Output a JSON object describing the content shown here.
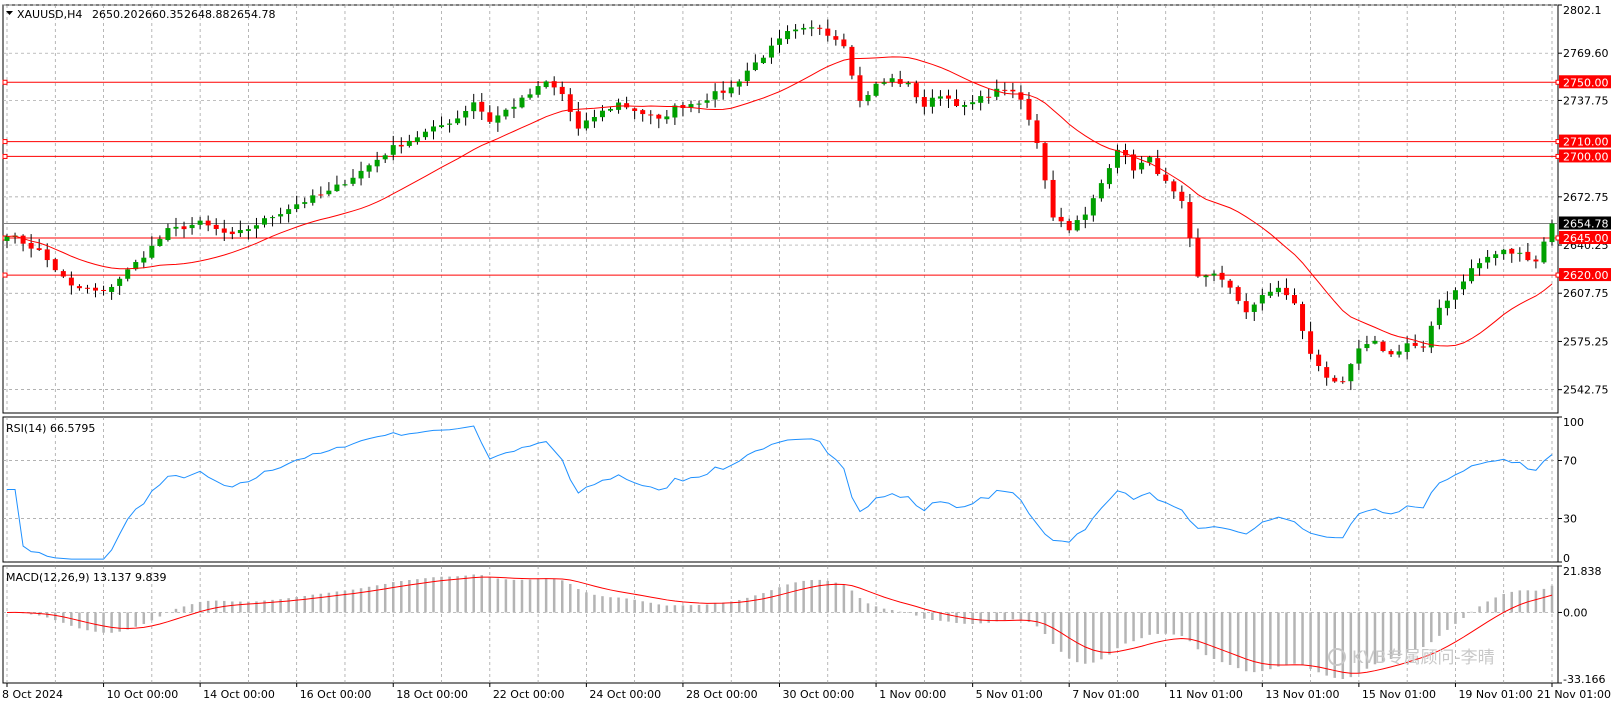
{
  "chart_data": [
    {
      "type": "candlestick",
      "title": "XAUUSD,H4",
      "ohlc_readout": [
        "2650.20",
        "2660.35",
        "2648.88",
        "2654.78"
      ],
      "ylim": [
        2527,
        2802.1
      ],
      "y_ticks": [
        "2802.1",
        "2769.60",
        "2737.75",
        "2672.75",
        "2640.25",
        "2607.75",
        "2575.25",
        "2542.75"
      ],
      "y_tick_values": [
        2802.1,
        2769.6,
        2737.75,
        2672.75,
        2640.25,
        2607.75,
        2575.25,
        2542.75
      ],
      "x_ticks": [
        "8 Oct 2024",
        "10 Oct 00:00",
        "14 Oct 00:00",
        "16 Oct 00:00",
        "18 Oct 00:00",
        "22 Oct 00:00",
        "24 Oct 00:00",
        "28 Oct 00:00",
        "30 Oct 00:00",
        "1 Nov 00:00",
        "5 Nov 01:00",
        "7 Nov 01:00",
        "11 Nov 01:00",
        "13 Nov 01:00",
        "15 Nov 01:00",
        "19 Nov 01:00",
        "21 Nov 01:00"
      ],
      "x_tick_bar_index": [
        0,
        12,
        24,
        36,
        48,
        60,
        72,
        84,
        96,
        108,
        120,
        132,
        144,
        156,
        168,
        180,
        192
      ],
      "bar_count": 193,
      "anchor_closes": [
        [
          0,
          2648
        ],
        [
          4,
          2636
        ],
        [
          8,
          2612
        ],
        [
          12,
          2608
        ],
        [
          16,
          2628
        ],
        [
          20,
          2650
        ],
        [
          24,
          2655
        ],
        [
          28,
          2646
        ],
        [
          32,
          2657
        ],
        [
          36,
          2668
        ],
        [
          40,
          2676
        ],
        [
          44,
          2690
        ],
        [
          48,
          2706
        ],
        [
          52,
          2716
        ],
        [
          56,
          2726
        ],
        [
          58,
          2737
        ],
        [
          60,
          2724
        ],
        [
          64,
          2738
        ],
        [
          67,
          2750
        ],
        [
          69,
          2742
        ],
        [
          71,
          2718
        ],
        [
          73,
          2727
        ],
        [
          76,
          2736
        ],
        [
          79,
          2729
        ],
        [
          81,
          2724
        ],
        [
          83,
          2733
        ],
        [
          86,
          2737
        ],
        [
          88,
          2742
        ],
        [
          90,
          2746
        ],
        [
          92,
          2758
        ],
        [
          94,
          2768
        ],
        [
          97,
          2783
        ],
        [
          101,
          2787
        ],
        [
          104,
          2776
        ],
        [
          106,
          2737
        ],
        [
          108,
          2748
        ],
        [
          110,
          2752
        ],
        [
          112,
          2748
        ],
        [
          114,
          2734
        ],
        [
          116,
          2742
        ],
        [
          119,
          2733
        ],
        [
          122,
          2742
        ],
        [
          124,
          2746
        ],
        [
          126,
          2738
        ],
        [
          128,
          2710
        ],
        [
          130,
          2660
        ],
        [
          132,
          2652
        ],
        [
          134,
          2660
        ],
        [
          136,
          2682
        ],
        [
          138,
          2706
        ],
        [
          140,
          2692
        ],
        [
          142,
          2698
        ],
        [
          144,
          2682
        ],
        [
          146,
          2668
        ],
        [
          148,
          2618
        ],
        [
          150,
          2622
        ],
        [
          152,
          2610
        ],
        [
          154,
          2596
        ],
        [
          156,
          2605
        ],
        [
          158,
          2612
        ],
        [
          160,
          2600
        ],
        [
          162,
          2566
        ],
        [
          164,
          2552
        ],
        [
          166,
          2546
        ],
        [
          168,
          2570
        ],
        [
          170,
          2574
        ],
        [
          172,
          2566
        ],
        [
          174,
          2574
        ],
        [
          176,
          2570
        ],
        [
          178,
          2598
        ],
        [
          180,
          2610
        ],
        [
          182,
          2624
        ],
        [
          184,
          2632
        ],
        [
          186,
          2636
        ],
        [
          188,
          2634
        ],
        [
          190,
          2630
        ],
        [
          192,
          2654.78
        ]
      ],
      "moving_average": {
        "color": "#ff0000"
      },
      "bull_color": "#00a000",
      "bear_color": "#ff0000",
      "horizontal_levels": [
        {
          "value": 2750,
          "label": "2750.00",
          "color": "#ff0000"
        },
        {
          "value": 2710,
          "label": "2710.00",
          "color": "#ff0000"
        },
        {
          "value": 2700,
          "label": "2700.00",
          "color": "#ff0000"
        },
        {
          "value": 2645,
          "label": "2645.00",
          "color": "#ff0000"
        },
        {
          "value": 2620,
          "label": "2620.00",
          "color": "#ff0000"
        }
      ],
      "current_price": {
        "value": 2654.78,
        "label": "2654.78",
        "color": "#000000"
      },
      "grid": true
    },
    {
      "type": "line",
      "title": "RSI(14) 66.5795",
      "ylim": [
        0,
        100
      ],
      "y_ticks": [
        "100",
        "70",
        "30",
        "0"
      ],
      "y_tick_values": [
        100,
        70,
        30,
        0
      ],
      "color": "#1e90ff",
      "levels": [
        70,
        30
      ]
    },
    {
      "type": "histogram+line",
      "title": "MACD(12,26,9) 13.137 9.839",
      "ylim": [
        -33.166,
        21.838
      ],
      "y_ticks": [
        "21.838",
        "0.00",
        "-33.166"
      ],
      "y_tick_values": [
        21.838,
        0,
        -33.166
      ],
      "histogram_color": "#b4b4b4",
      "signal_color": "#ff0000"
    }
  ],
  "watermark": "KVB专属顾问-李晴"
}
